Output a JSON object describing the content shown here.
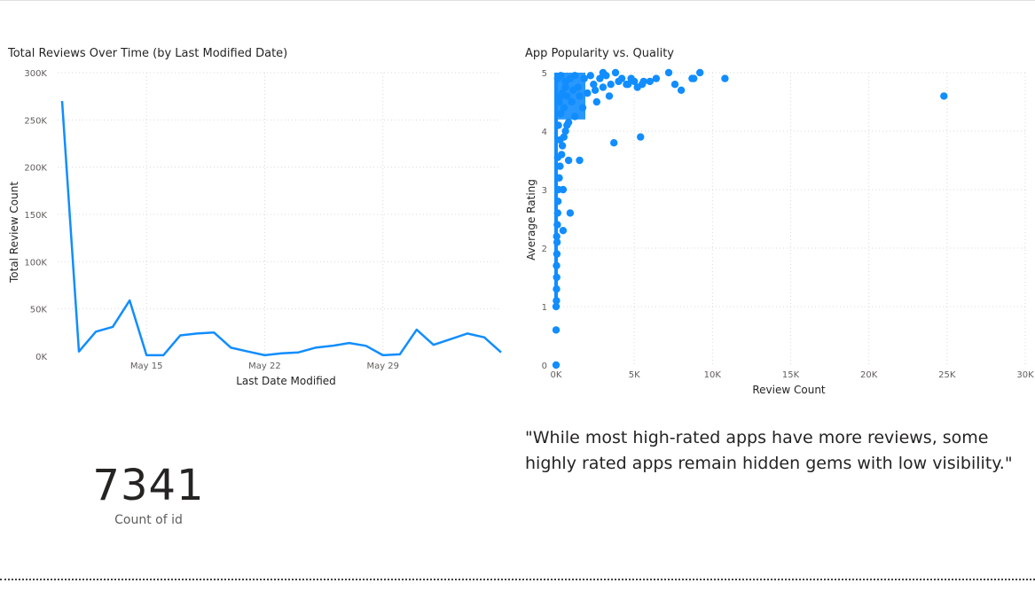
{
  "quote": "\"While most high-rated apps have more reviews, some highly rated apps remain hidden gems with low visibility.\"",
  "card": {
    "value": "7341",
    "label": "Count of id"
  },
  "chart_data": [
    {
      "type": "line",
      "title": "Total Reviews Over Time (by Last Modified Date)",
      "xlabel": "Last Date Modified",
      "ylabel": "Total Review Count",
      "x_tick_labels": [
        "May 15",
        "May 22",
        "May 29"
      ],
      "y_tick_labels": [
        "0K",
        "50K",
        "100K",
        "150K",
        "200K",
        "250K",
        "300K"
      ],
      "ylim": [
        0,
        300000
      ],
      "grid": true,
      "line_color": "#118dff",
      "series": [
        {
          "x": [
            "May 10",
            "May 11",
            "May 12",
            "May 13",
            "May 14",
            "May 15",
            "May 16",
            "May 17",
            "May 18",
            "May 19",
            "May 20",
            "May 21",
            "May 22",
            "May 23",
            "May 24",
            "May 25",
            "May 26",
            "May 27",
            "May 28",
            "May 29",
            "May 30",
            "May 31",
            "Jun 1",
            "Jun 2",
            "Jun 3",
            "Jun 4",
            "Jun 5"
          ],
          "values": [
            270000,
            5000,
            26000,
            31000,
            59000,
            1000,
            1000,
            22000,
            24000,
            25000,
            9000,
            5000,
            1000,
            3000,
            4000,
            9000,
            11000,
            14000,
            11000,
            1000,
            2000,
            28000,
            12000,
            18000,
            24000,
            20000,
            4000
          ]
        }
      ]
    },
    {
      "type": "scatter",
      "title": "App Popularity vs. Quality",
      "xlabel": "Review Count",
      "ylabel": "Average Rating",
      "x_tick_labels": [
        "0K",
        "5K",
        "10K",
        "15K",
        "20K",
        "25K",
        "30K"
      ],
      "y_tick_labels": [
        "0",
        "1",
        "2",
        "3",
        "4",
        "5"
      ],
      "xlim": [
        0,
        30000
      ],
      "ylim": [
        0,
        5
      ],
      "grid": true,
      "point_color": "#118dff",
      "points": [
        [
          0,
          0
        ],
        [
          0,
          0.6
        ],
        [
          0,
          1.0
        ],
        [
          20,
          1.1
        ],
        [
          30,
          1.3
        ],
        [
          40,
          1.5
        ],
        [
          30,
          1.7
        ],
        [
          50,
          1.9
        ],
        [
          60,
          2.1
        ],
        [
          40,
          2.2
        ],
        [
          80,
          2.4
        ],
        [
          100,
          2.6
        ],
        [
          120,
          2.8
        ],
        [
          150,
          3.0
        ],
        [
          200,
          3.2
        ],
        [
          250,
          3.4
        ],
        [
          350,
          3.6
        ],
        [
          400,
          3.75
        ],
        [
          500,
          3.9
        ],
        [
          600,
          4.0
        ],
        [
          700,
          4.1
        ],
        [
          800,
          4.15
        ],
        [
          300,
          4.3
        ],
        [
          500,
          4.4
        ],
        [
          1000,
          4.5
        ],
        [
          1500,
          4.6
        ],
        [
          2000,
          4.65
        ],
        [
          2500,
          4.7
        ],
        [
          3000,
          4.75
        ],
        [
          3500,
          4.8
        ],
        [
          4000,
          4.85
        ],
        [
          4500,
          4.8
        ],
        [
          5200,
          4.75
        ],
        [
          5500,
          4.8
        ],
        [
          100,
          4.9
        ],
        [
          300,
          4.95
        ],
        [
          600,
          4.85
        ],
        [
          900,
          4.9
        ],
        [
          1200,
          4.95
        ],
        [
          1800,
          4.9
        ],
        [
          2200,
          4.95
        ],
        [
          2800,
          4.9
        ],
        [
          3200,
          4.95
        ],
        [
          3800,
          5.0
        ],
        [
          4200,
          4.9
        ],
        [
          4800,
          4.9
        ],
        [
          6400,
          4.9
        ],
        [
          7200,
          5.0
        ],
        [
          7600,
          4.8
        ],
        [
          8000,
          4.7
        ],
        [
          8700,
          4.9
        ],
        [
          9200,
          5.0
        ],
        [
          10800,
          4.9
        ],
        [
          24800,
          4.6
        ],
        [
          3700,
          3.8
        ],
        [
          5400,
          3.9
        ],
        [
          1500,
          3.5
        ],
        [
          800,
          3.5
        ],
        [
          450,
          3.0
        ],
        [
          900,
          2.6
        ],
        [
          450,
          2.3
        ],
        [
          1200,
          4.25
        ],
        [
          1700,
          4.4
        ],
        [
          2600,
          4.5
        ],
        [
          3400,
          4.6
        ],
        [
          4600,
          4.8
        ],
        [
          200,
          4.5
        ],
        [
          400,
          4.65
        ],
        [
          600,
          4.75
        ],
        [
          150,
          4.1
        ],
        [
          250,
          3.85
        ],
        [
          100,
          3.55
        ],
        [
          300,
          4.6
        ],
        [
          700,
          4.6
        ],
        [
          1100,
          4.7
        ],
        [
          1400,
          4.75
        ],
        [
          2400,
          4.8
        ],
        [
          3000,
          5.0
        ],
        [
          5000,
          4.85
        ],
        [
          5600,
          4.85
        ],
        [
          6000,
          4.85
        ],
        [
          8800,
          4.9
        ]
      ]
    }
  ]
}
